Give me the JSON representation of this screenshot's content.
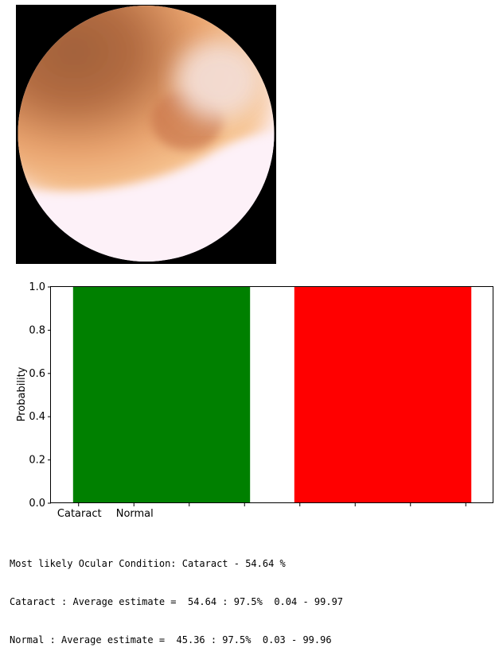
{
  "image": {
    "subject": "fundus photograph (retina, blurred)",
    "colors": {
      "background": "#000000",
      "bright": "#fdf1f8",
      "orange": "#f5b37e",
      "dark": "#a0603a"
    }
  },
  "chart_data": {
    "type": "bar",
    "title": "",
    "xlabel": "",
    "ylabel": "Probability",
    "ylim": [
      0,
      1.0
    ],
    "yticks": [
      "0.0",
      "0.2",
      "0.4",
      "0.6",
      "0.8",
      "1.0"
    ],
    "categories": [
      "Cataract",
      "Normal"
    ],
    "bars": [
      {
        "value": 1.0,
        "color": "#008000"
      },
      {
        "value": 1.0,
        "color": "#ff0000"
      }
    ],
    "grid": false
  },
  "output": {
    "line1": "Most likely Ocular Condition: Cataract - 54.64 %",
    "line2": "Cataract : Average estimate =  54.64 : 97.5%  0.04 - 99.97",
    "line3": "Normal : Average estimate =  45.36 : 97.5%  0.03 - 99.96"
  }
}
